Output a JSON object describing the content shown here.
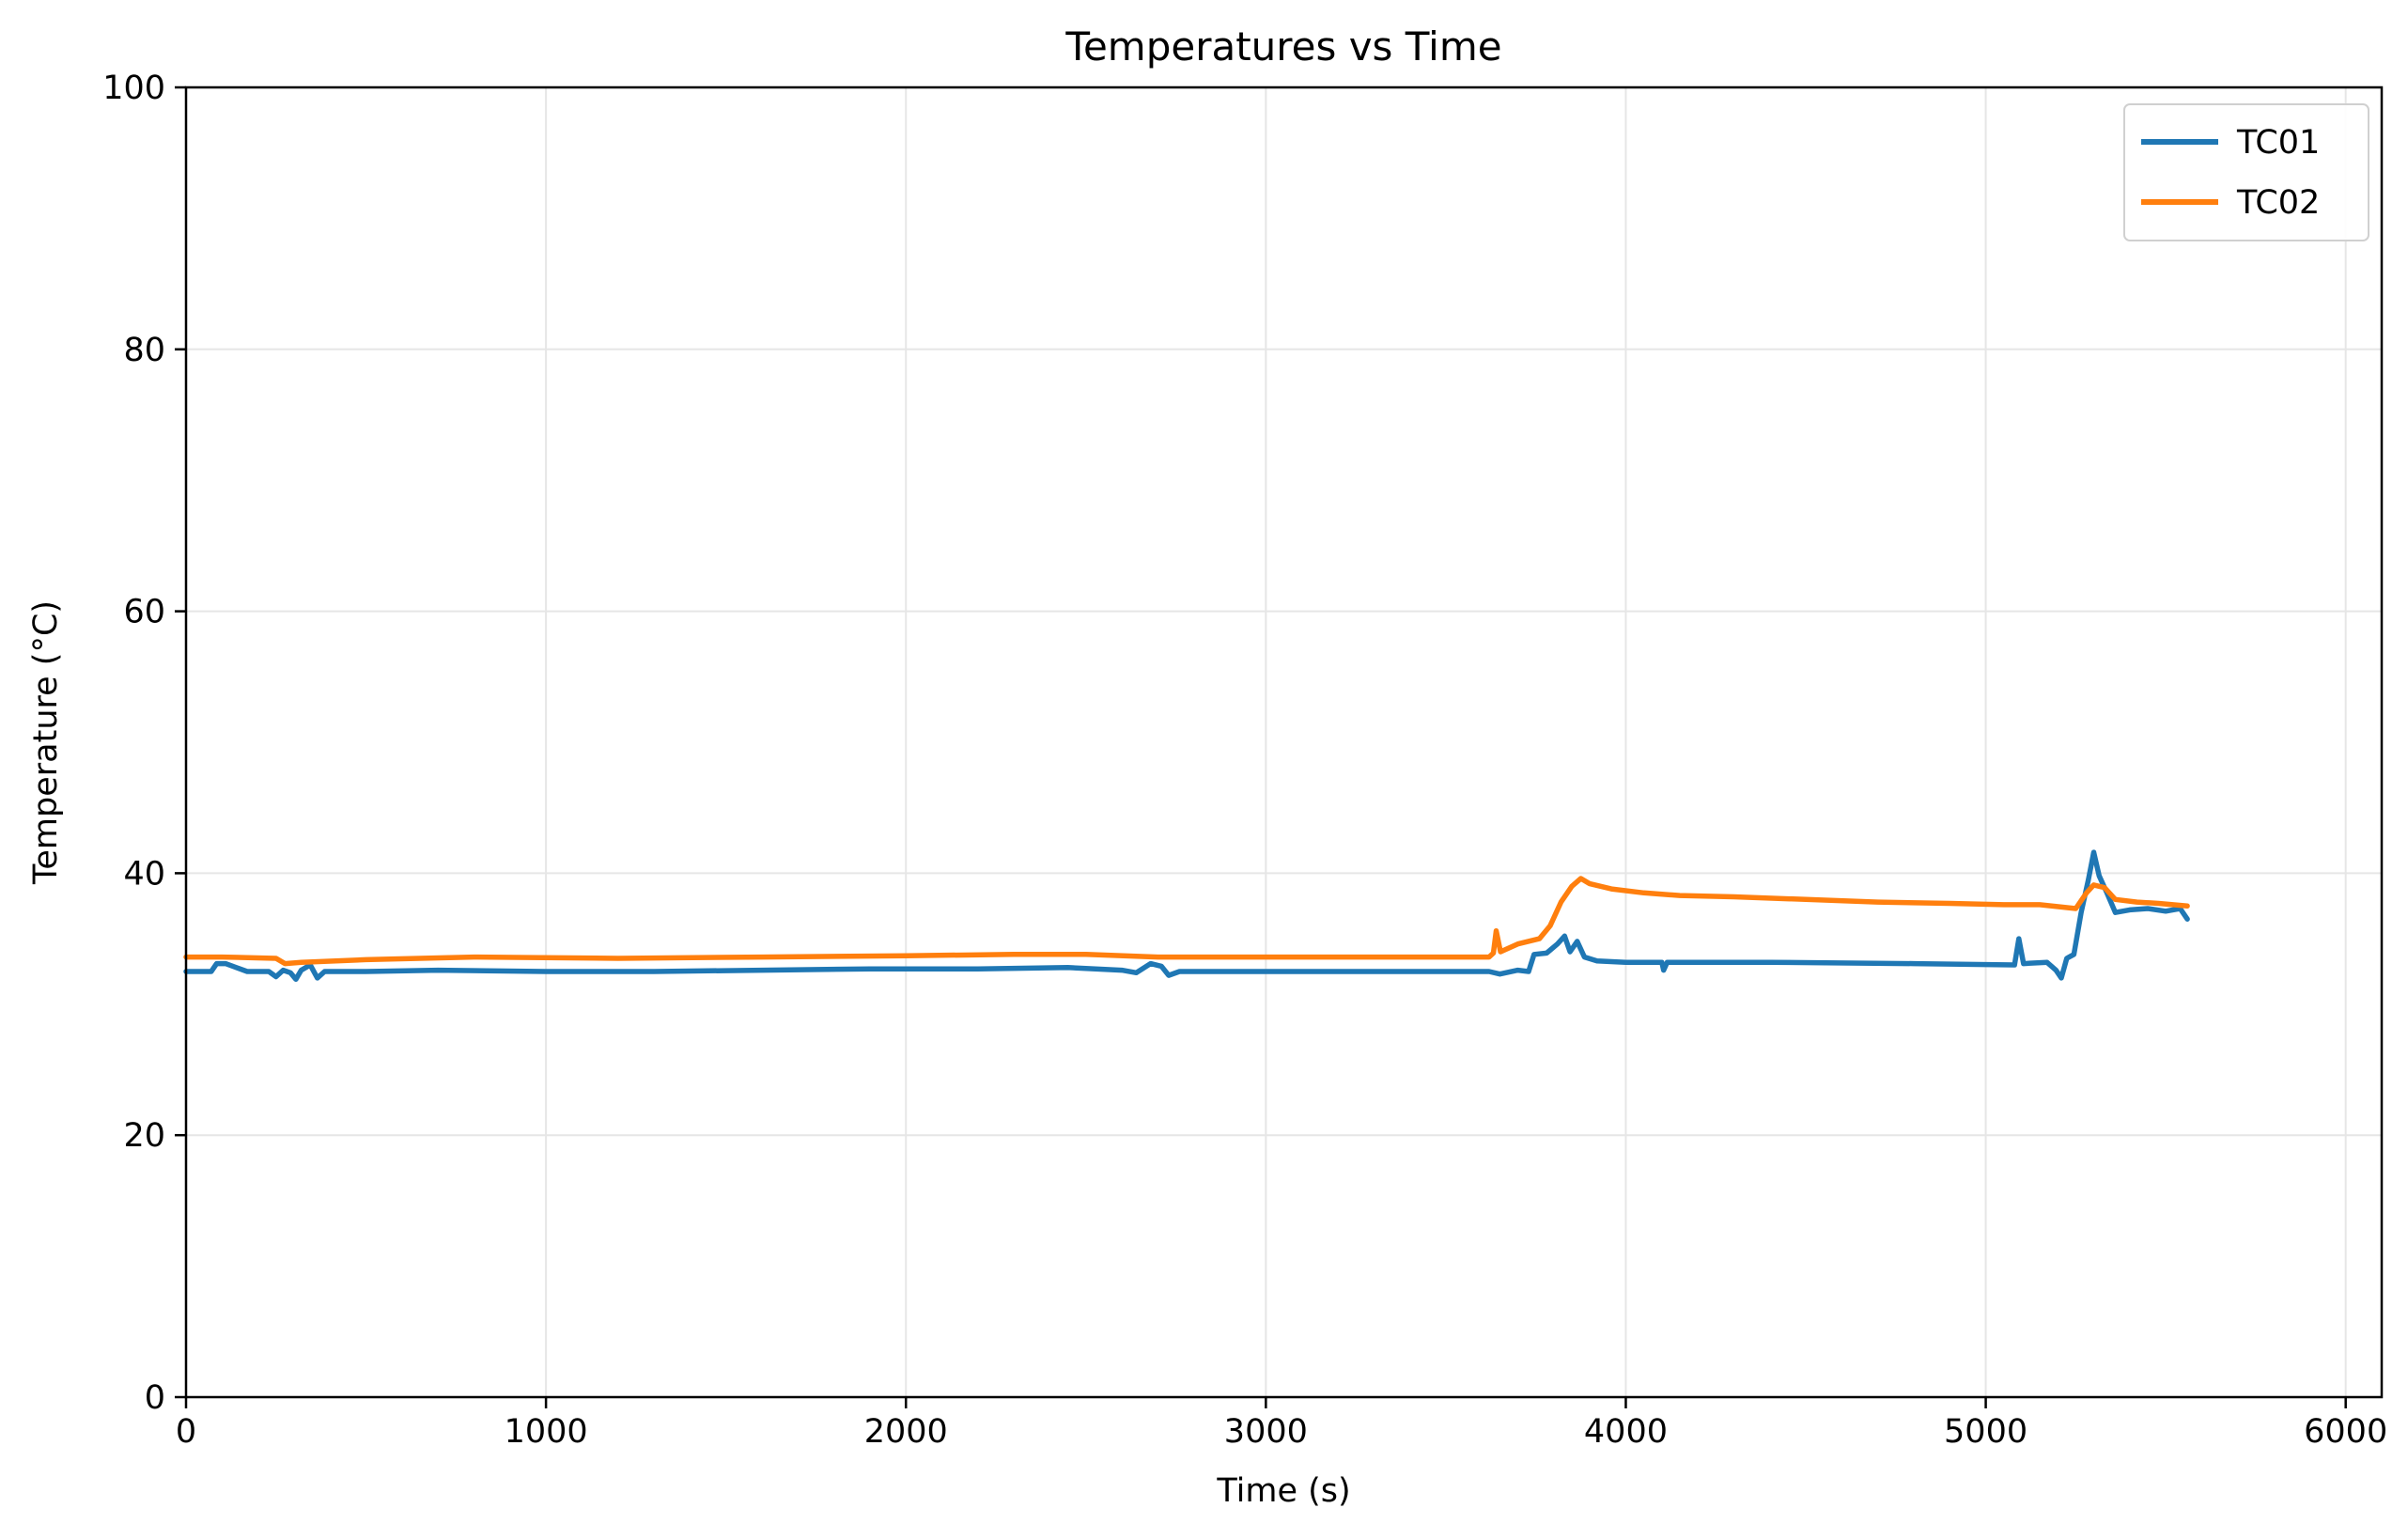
{
  "chart_data": {
    "type": "line",
    "title": "Temperatures vs Time",
    "xlabel": "Time (s)",
    "ylabel": "Temperature (°C)",
    "xlim": [
      0,
      6100
    ],
    "ylim": [
      0,
      100
    ],
    "xticks": [
      0,
      1000,
      2000,
      3000,
      4000,
      5000,
      6000
    ],
    "yticks": [
      0,
      20,
      40,
      60,
      80,
      100
    ],
    "grid": true,
    "legend_position": "top-right",
    "series": [
      {
        "name": "TC01",
        "color": "#1f77b4",
        "points": [
          [
            0,
            32.5
          ],
          [
            40,
            32.5
          ],
          [
            70,
            32.5
          ],
          [
            85,
            33.1
          ],
          [
            110,
            33.1
          ],
          [
            140,
            32.8
          ],
          [
            170,
            32.5
          ],
          [
            230,
            32.5
          ],
          [
            250,
            32.1
          ],
          [
            270,
            32.6
          ],
          [
            290,
            32.4
          ],
          [
            305,
            31.9
          ],
          [
            320,
            32.6
          ],
          [
            345,
            33.0
          ],
          [
            365,
            32.0
          ],
          [
            385,
            32.5
          ],
          [
            500,
            32.5
          ],
          [
            700,
            32.6
          ],
          [
            1000,
            32.5
          ],
          [
            1300,
            32.5
          ],
          [
            1600,
            32.6
          ],
          [
            1900,
            32.7
          ],
          [
            2200,
            32.7
          ],
          [
            2450,
            32.8
          ],
          [
            2600,
            32.6
          ],
          [
            2640,
            32.4
          ],
          [
            2680,
            33.1
          ],
          [
            2710,
            32.9
          ],
          [
            2730,
            32.2
          ],
          [
            2760,
            32.5
          ],
          [
            3100,
            32.5
          ],
          [
            3400,
            32.5
          ],
          [
            3620,
            32.5
          ],
          [
            3650,
            32.3
          ],
          [
            3700,
            32.6
          ],
          [
            3730,
            32.5
          ],
          [
            3745,
            33.8
          ],
          [
            3780,
            33.9
          ],
          [
            3810,
            34.6
          ],
          [
            3830,
            35.2
          ],
          [
            3845,
            34.0
          ],
          [
            3865,
            34.8
          ],
          [
            3885,
            33.6
          ],
          [
            3920,
            33.3
          ],
          [
            4000,
            33.2
          ],
          [
            4100,
            33.2
          ],
          [
            4105,
            32.6
          ],
          [
            4115,
            33.2
          ],
          [
            4400,
            33.2
          ],
          [
            4800,
            33.1
          ],
          [
            5080,
            33.0
          ],
          [
            5092,
            35.0
          ],
          [
            5105,
            33.1
          ],
          [
            5170,
            33.2
          ],
          [
            5195,
            32.6
          ],
          [
            5210,
            32.0
          ],
          [
            5225,
            33.5
          ],
          [
            5245,
            33.8
          ],
          [
            5265,
            37.0
          ],
          [
            5285,
            39.5
          ],
          [
            5300,
            41.6
          ],
          [
            5315,
            39.8
          ],
          [
            5335,
            38.6
          ],
          [
            5360,
            37.0
          ],
          [
            5400,
            37.2
          ],
          [
            5450,
            37.3
          ],
          [
            5500,
            37.1
          ],
          [
            5540,
            37.3
          ],
          [
            5560,
            36.5
          ]
        ]
      },
      {
        "name": "TC02",
        "color": "#ff7f0e",
        "points": [
          [
            0,
            33.6
          ],
          [
            100,
            33.6
          ],
          [
            250,
            33.5
          ],
          [
            275,
            33.1
          ],
          [
            320,
            33.2
          ],
          [
            500,
            33.4
          ],
          [
            800,
            33.6
          ],
          [
            1200,
            33.5
          ],
          [
            1600,
            33.6
          ],
          [
            2000,
            33.7
          ],
          [
            2300,
            33.8
          ],
          [
            2500,
            33.8
          ],
          [
            2700,
            33.6
          ],
          [
            3000,
            33.6
          ],
          [
            3300,
            33.6
          ],
          [
            3620,
            33.6
          ],
          [
            3632,
            33.9
          ],
          [
            3640,
            35.6
          ],
          [
            3652,
            34.0
          ],
          [
            3700,
            34.6
          ],
          [
            3760,
            35.0
          ],
          [
            3790,
            36.0
          ],
          [
            3820,
            37.8
          ],
          [
            3850,
            39.0
          ],
          [
            3875,
            39.6
          ],
          [
            3900,
            39.2
          ],
          [
            3960,
            38.8
          ],
          [
            4050,
            38.5
          ],
          [
            4150,
            38.3
          ],
          [
            4300,
            38.2
          ],
          [
            4500,
            38.0
          ],
          [
            4700,
            37.8
          ],
          [
            4900,
            37.7
          ],
          [
            5050,
            37.6
          ],
          [
            5150,
            37.6
          ],
          [
            5250,
            37.3
          ],
          [
            5280,
            38.5
          ],
          [
            5300,
            39.1
          ],
          [
            5330,
            38.9
          ],
          [
            5360,
            38.0
          ],
          [
            5420,
            37.8
          ],
          [
            5480,
            37.7
          ],
          [
            5560,
            37.5
          ]
        ]
      }
    ]
  }
}
